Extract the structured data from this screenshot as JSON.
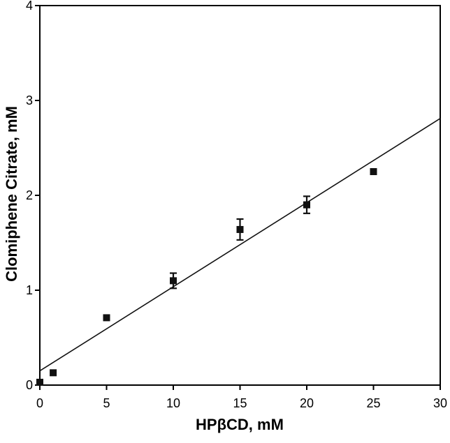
{
  "chart_data": {
    "type": "scatter",
    "xlabel": "HPβCD, mM",
    "ylabel": "Clomiphene Citrate, mM",
    "xlim": [
      0,
      30
    ],
    "ylim": [
      0,
      4
    ],
    "x_ticks": [
      0,
      5,
      10,
      15,
      20,
      25,
      30
    ],
    "y_ticks": [
      0,
      1,
      2,
      3,
      4
    ],
    "x_tick_labels": [
      "0",
      "5",
      "10",
      "15",
      "20",
      "25",
      "30"
    ],
    "y_tick_labels": [
      "0",
      "1",
      "2",
      "3",
      "4"
    ],
    "grid": false,
    "legend": "none",
    "series": [
      {
        "marker": "square",
        "x": [
          0,
          1,
          5,
          10,
          15,
          20,
          25
        ],
        "y": [
          0.03,
          0.13,
          0.71,
          1.1,
          1.64,
          1.9,
          2.25
        ],
        "y_error": [
          0,
          0,
          0,
          0.08,
          0.11,
          0.09,
          0
        ]
      }
    ],
    "fit_line": {
      "type": "linear",
      "x": [
        0,
        30
      ],
      "y": [
        0.15,
        2.81
      ]
    },
    "colors": {
      "marker": "#111111",
      "line": "#111111",
      "axis": "#000000"
    }
  }
}
